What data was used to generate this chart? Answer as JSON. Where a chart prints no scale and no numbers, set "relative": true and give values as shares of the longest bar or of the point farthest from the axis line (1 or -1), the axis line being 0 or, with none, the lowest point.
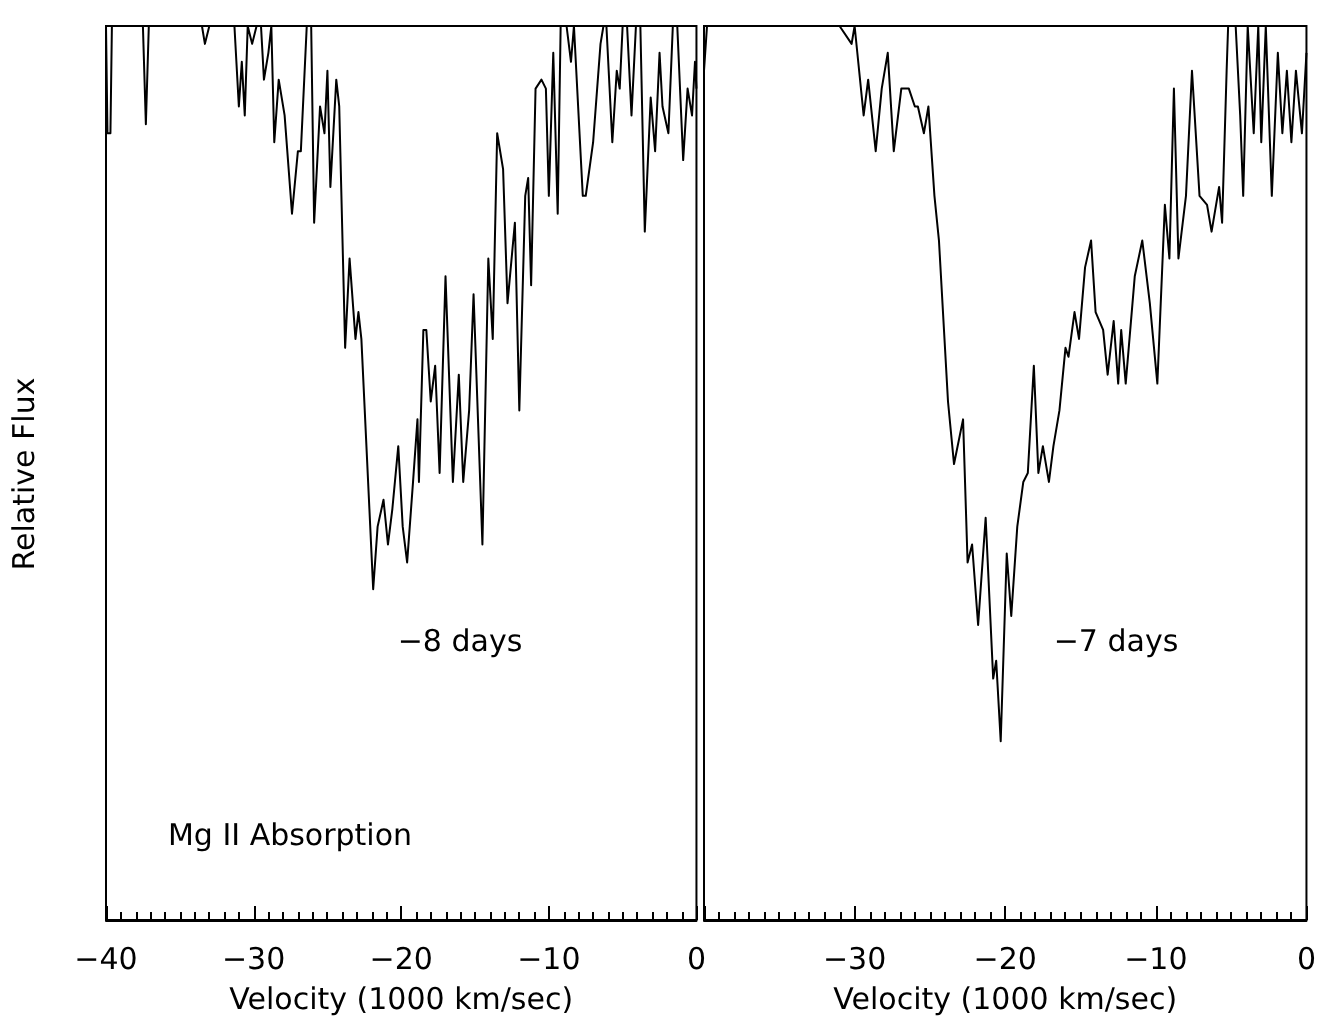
{
  "chart_data": [
    {
      "type": "line",
      "relative": true,
      "ylabel": "Relative Flux",
      "xlabel": "Velocity (1000 km/sec)",
      "xlim": [
        -40,
        0
      ],
      "xticks": [
        -40,
        -30,
        -20,
        -10,
        0
      ],
      "tick_labels": "x",
      "grid": false,
      "marker": "none",
      "line_style": "solid",
      "annotations": [
        "Mg II Absorption",
        "−8 days"
      ],
      "series": [
        {
          "color": "#000000",
          "x": [
            -40.0,
            -39.9,
            -39.7,
            -39.6,
            -37.5,
            -37.3,
            -37.1,
            -33.5,
            -33.3,
            -33.0,
            -31.3,
            -31.0,
            -30.8,
            -30.6,
            -30.4,
            -30.1,
            -29.8,
            -29.5,
            -29.3,
            -29.0,
            -28.8,
            -28.6,
            -28.3,
            -27.9,
            -27.4,
            -27.0,
            -26.8,
            -26.4,
            -26.1,
            -25.9,
            -25.5,
            -25.2,
            -25.0,
            -24.8,
            -24.4,
            -24.2,
            -23.8,
            -23.5,
            -23.1,
            -22.9,
            -22.7,
            -21.9,
            -21.6,
            -21.2,
            -20.9,
            -20.6,
            -20.2,
            -19.9,
            -19.6,
            -19.2,
            -18.9,
            -18.8,
            -18.5,
            -18.3,
            -18.0,
            -17.7,
            -17.4,
            -17.0,
            -16.5,
            -16.1,
            -15.8,
            -15.4,
            -15.1,
            -14.5,
            -14.1,
            -13.8,
            -13.5,
            -13.1,
            -12.8,
            -12.3,
            -12.0,
            -11.6,
            -11.4,
            -11.2,
            -10.9,
            -10.5,
            -10.2,
            -10.0,
            -9.7,
            -9.4,
            -9.2,
            -8.8,
            -8.5,
            -8.3,
            -7.7,
            -7.5,
            -7.0,
            -6.5,
            -6.3,
            -6.1,
            -5.7,
            -5.4,
            -5.2,
            -5.0,
            -4.7,
            -4.4,
            -4.1,
            -3.8,
            -3.5,
            -3.1,
            -2.8,
            -2.5,
            -2.3,
            -1.9,
            -1.6,
            -1.3,
            -0.9,
            -0.6,
            -0.3,
            -0.1,
            0.0
          ],
          "values": [
            1.0,
            0.88,
            0.88,
            1.0,
            1.0,
            0.89,
            1.0,
            1.0,
            0.98,
            1.0,
            1.0,
            0.91,
            0.96,
            0.9,
            1.0,
            0.98,
            1.0,
            1.0,
            0.94,
            0.97,
            1.0,
            0.87,
            0.94,
            0.9,
            0.79,
            0.86,
            0.86,
            1.0,
            1.0,
            0.78,
            0.91,
            0.88,
            0.95,
            0.82,
            0.94,
            0.91,
            0.64,
            0.74,
            0.65,
            0.68,
            0.65,
            0.37,
            0.44,
            0.47,
            0.42,
            0.46,
            0.53,
            0.44,
            0.4,
            0.49,
            0.56,
            0.49,
            0.66,
            0.66,
            0.58,
            0.62,
            0.5,
            0.72,
            0.49,
            0.61,
            0.49,
            0.57,
            0.7,
            0.42,
            0.74,
            0.65,
            0.88,
            0.84,
            0.69,
            0.78,
            0.57,
            0.81,
            0.83,
            0.71,
            0.93,
            0.94,
            0.93,
            0.81,
            0.97,
            0.79,
            1.0,
            1.0,
            0.96,
            1.0,
            0.81,
            0.81,
            0.87,
            0.98,
            1.0,
            1.0,
            0.87,
            0.95,
            0.93,
            1.0,
            1.0,
            0.9,
            1.0,
            1.0,
            0.77,
            0.92,
            0.86,
            0.97,
            0.91,
            0.88,
            1.0,
            1.0,
            0.85,
            0.93,
            0.9,
            0.96,
            0.93
          ]
        }
      ]
    },
    {
      "type": "line",
      "relative": true,
      "xlabel": "Velocity (1000 km/sec)",
      "xlim": [
        -40,
        0
      ],
      "xticks": [
        {
          "value": -40,
          "label": null
        },
        -30,
        -20,
        -10,
        0
      ],
      "tick_labels": "x",
      "grid": false,
      "marker": "none",
      "line_style": "solid",
      "annotations": [
        "−7 days"
      ],
      "series": [
        {
          "color": "#000000",
          "x": [
            -40.0,
            -39.8,
            -31.0,
            -30.2,
            -30.0,
            -29.4,
            -29.1,
            -28.6,
            -28.2,
            -27.8,
            -27.4,
            -26.9,
            -26.4,
            -26.0,
            -25.8,
            -25.4,
            -25.1,
            -24.7,
            -24.4,
            -23.8,
            -23.4,
            -22.8,
            -22.5,
            -22.2,
            -21.8,
            -21.3,
            -20.8,
            -20.6,
            -20.3,
            -19.9,
            -19.6,
            -19.2,
            -18.8,
            -18.5,
            -18.1,
            -17.8,
            -17.5,
            -17.1,
            -16.8,
            -16.4,
            -16.0,
            -15.8,
            -15.4,
            -15.1,
            -14.7,
            -14.3,
            -14.0,
            -13.5,
            -13.2,
            -12.8,
            -12.5,
            -12.3,
            -12.0,
            -11.4,
            -10.9,
            -10.4,
            -9.9,
            -9.4,
            -9.1,
            -8.8,
            -8.5,
            -8.0,
            -7.6,
            -7.1,
            -6.6,
            -6.3,
            -5.8,
            -5.6,
            -5.3,
            -5.2,
            -4.7,
            -4.4,
            -4.2,
            -3.9,
            -3.5,
            -3.2,
            -3.0,
            -2.7,
            -2.3,
            -1.9,
            -1.6,
            -1.3,
            -1.0,
            -0.7,
            -0.3,
            0.0
          ],
          "values": [
            0.95,
            1.0,
            1.0,
            0.98,
            1.0,
            0.9,
            0.94,
            0.86,
            0.93,
            0.97,
            0.86,
            0.93,
            0.93,
            0.91,
            0.91,
            0.88,
            0.91,
            0.81,
            0.76,
            0.58,
            0.51,
            0.56,
            0.4,
            0.42,
            0.33,
            0.45,
            0.27,
            0.29,
            0.2,
            0.41,
            0.34,
            0.44,
            0.49,
            0.5,
            0.62,
            0.5,
            0.53,
            0.49,
            0.53,
            0.57,
            0.64,
            0.63,
            0.68,
            0.65,
            0.73,
            0.76,
            0.68,
            0.66,
            0.61,
            0.67,
            0.6,
            0.66,
            0.6,
            0.72,
            0.76,
            0.69,
            0.6,
            0.8,
            0.74,
            0.93,
            0.74,
            0.81,
            0.95,
            0.81,
            0.8,
            0.77,
            0.82,
            0.78,
            0.95,
            1.0,
            1.0,
            0.9,
            0.81,
            1.0,
            0.88,
            1.0,
            0.87,
            1.0,
            0.81,
            0.97,
            0.88,
            0.95,
            0.87,
            0.95,
            0.88,
            0.97
          ]
        }
      ]
    }
  ]
}
